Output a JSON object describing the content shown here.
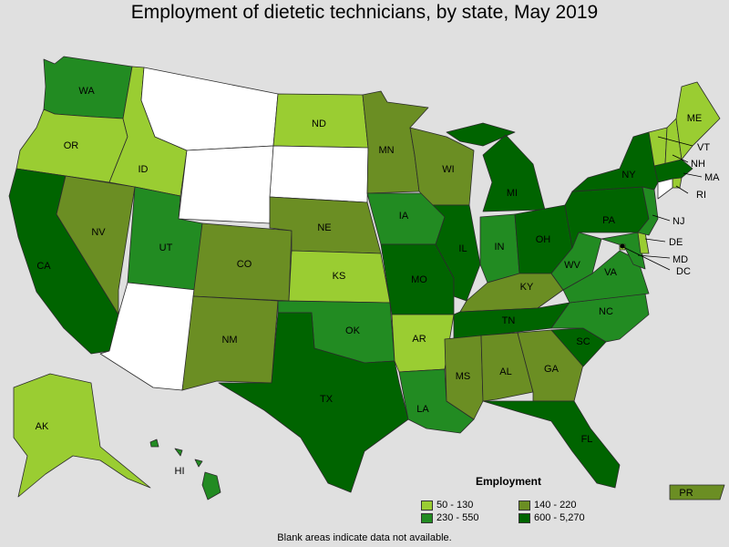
{
  "title": "Employment of dietetic technicians, by state, May 2019",
  "footnote": "Blank areas indicate data not available.",
  "colors": {
    "c1": "#9acd32",
    "c2": "#6b8e23",
    "c3": "#228b22",
    "c4": "#006400",
    "nodata": "#ffffff"
  },
  "legend": {
    "title": "Employment",
    "items": [
      {
        "label": "50 - 130",
        "color": "#9acd32"
      },
      {
        "label": "140 - 220",
        "color": "#6b8e23"
      },
      {
        "label": "230 - 550",
        "color": "#228b22"
      },
      {
        "label": "600 - 5,270",
        "color": "#006400"
      }
    ]
  },
  "states": {
    "WA": "c3",
    "OR": "c1",
    "CA": "c4",
    "NV": "c2",
    "ID": "c1",
    "MT": "nodata",
    "WY": "nodata",
    "UT": "c3",
    "AZ": "nodata",
    "CO": "c2",
    "NM": "c2",
    "ND": "c1",
    "SD": "nodata",
    "NE": "c2",
    "KS": "c1",
    "OK": "c3",
    "TX": "c4",
    "MN": "c2",
    "IA": "c3",
    "MO": "c4",
    "AR": "c1",
    "LA": "c3",
    "WI": "c2",
    "IL": "c4",
    "MS": "c2",
    "MI": "c4",
    "IN": "c3",
    "KY": "c2",
    "TN": "c4",
    "AL": "c2",
    "GA": "c2",
    "FL": "c4",
    "OH": "c4",
    "WV": "c3",
    "VA": "c3",
    "NC": "c3",
    "SC": "c4",
    "PA": "c4",
    "NY": "c4",
    "NJ": "c3",
    "DE": "c1",
    "MD": "c3",
    "DC": "c1",
    "VT": "c1",
    "NH": "c1",
    "ME": "c1",
    "MA": "c4",
    "RI": "c1",
    "CT": "nodata",
    "AK": "c1",
    "HI": "c3",
    "PR": "c2"
  }
}
